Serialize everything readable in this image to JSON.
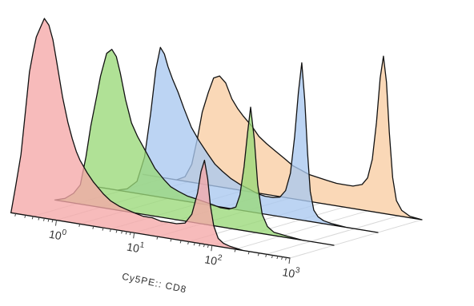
{
  "chart_data": {
    "type": "area",
    "subtype": "offset-histogram-overlay",
    "title": "",
    "xlabel": "Cy5PE:: CD8",
    "ylabel": "",
    "x_scale": "log",
    "xlim": [
      0.25,
      1000
    ],
    "ticks": [
      {
        "base": "10",
        "exp": "0",
        "value": 1
      },
      {
        "base": "10",
        "exp": "1",
        "value": 10
      },
      {
        "base": "10",
        "exp": "2",
        "value": 100
      },
      {
        "base": "10",
        "exp": "3",
        "value": 1000
      }
    ],
    "grid": true,
    "legend": "none",
    "series": [
      {
        "color": "#f5a8a8",
        "peak_height": 1.0,
        "x": [
          0.26,
          0.3,
          0.35,
          0.4,
          0.45,
          0.5,
          0.55,
          0.62,
          0.7,
          0.8,
          0.9,
          1.0,
          1.2,
          1.4,
          1.6,
          1.8,
          2.0,
          2.5,
          3.0,
          4.0,
          5.0,
          6.5,
          8.0,
          10,
          13,
          17,
          22,
          28,
          35,
          45,
          55,
          65,
          72,
          80,
          88,
          95,
          105,
          120,
          140,
          170,
          250,
          400,
          700,
          1000
        ],
        "y": [
          0.0,
          0.14,
          0.3,
          0.52,
          0.72,
          0.82,
          0.9,
          0.95,
          1.0,
          0.97,
          0.9,
          0.8,
          0.62,
          0.5,
          0.42,
          0.36,
          0.32,
          0.26,
          0.22,
          0.17,
          0.14,
          0.12,
          0.11,
          0.1,
          0.09,
          0.09,
          0.08,
          0.08,
          0.08,
          0.09,
          0.14,
          0.25,
          0.36,
          0.42,
          0.33,
          0.2,
          0.1,
          0.04,
          0.02,
          0.01,
          0.0,
          0.0,
          0.0,
          0.0
        ]
      },
      {
        "color": "#9ad879",
        "peak_height": 0.8,
        "x": [
          0.26,
          0.35,
          0.45,
          0.55,
          0.65,
          0.75,
          0.9,
          1.0,
          1.2,
          1.4,
          1.6,
          1.8,
          2.1,
          2.5,
          3.0,
          4.0,
          5.0,
          6.5,
          8.0,
          10,
          13,
          17,
          22,
          28,
          35,
          45,
          55,
          62,
          70,
          78,
          85,
          95,
          105,
          120,
          140,
          170,
          250,
          400,
          700,
          1000
        ],
        "y": [
          0.0,
          0.02,
          0.06,
          0.12,
          0.3,
          0.5,
          0.7,
          0.82,
          0.97,
          1.0,
          0.96,
          0.86,
          0.7,
          0.56,
          0.48,
          0.38,
          0.3,
          0.24,
          0.2,
          0.18,
          0.16,
          0.15,
          0.14,
          0.13,
          0.12,
          0.12,
          0.14,
          0.22,
          0.4,
          0.62,
          0.78,
          0.58,
          0.3,
          0.12,
          0.05,
          0.02,
          0.01,
          0.0,
          0.0,
          0.0
        ]
      },
      {
        "color": "#a9c8f0",
        "peak_height": 0.75,
        "x": [
          0.26,
          0.45,
          0.6,
          0.8,
          1.0,
          1.2,
          1.4,
          1.6,
          1.8,
          2.0,
          2.3,
          2.7,
          3.2,
          4.0,
          5.0,
          6.5,
          8.0,
          10,
          13,
          17,
          22,
          28,
          35,
          45,
          55,
          65,
          75,
          85,
          95,
          105,
          115,
          125,
          135,
          150,
          170,
          200,
          250,
          400,
          700,
          1000
        ],
        "y": [
          0.0,
          0.0,
          0.02,
          0.08,
          0.25,
          0.55,
          0.85,
          1.0,
          0.96,
          0.88,
          0.8,
          0.72,
          0.62,
          0.5,
          0.42,
          0.34,
          0.28,
          0.24,
          0.2,
          0.17,
          0.15,
          0.13,
          0.12,
          0.12,
          0.13,
          0.18,
          0.3,
          0.55,
          0.85,
          1.05,
          0.8,
          0.45,
          0.2,
          0.08,
          0.04,
          0.02,
          0.01,
          0.0,
          0.0,
          0.0
        ]
      },
      {
        "color": "#f8cda3",
        "peak_height": 0.75,
        "x": [
          0.26,
          0.5,
          0.7,
          0.9,
          1.1,
          1.3,
          1.5,
          1.8,
          2.1,
          2.5,
          3.0,
          3.6,
          4.3,
          5.0,
          6.5,
          8.0,
          10,
          13,
          17,
          22,
          28,
          35,
          45,
          60,
          80,
          100,
          130,
          170,
          200,
          230,
          260,
          290,
          320,
          350,
          380,
          420,
          470,
          550,
          700,
          1000
        ],
        "y": [
          0.0,
          0.0,
          0.0,
          0.03,
          0.12,
          0.3,
          0.48,
          0.62,
          0.72,
          0.74,
          0.7,
          0.6,
          0.54,
          0.5,
          0.44,
          0.38,
          0.34,
          0.3,
          0.26,
          0.22,
          0.2,
          0.18,
          0.17,
          0.16,
          0.15,
          0.15,
          0.15,
          0.17,
          0.22,
          0.35,
          0.6,
          0.9,
          1.05,
          0.88,
          0.55,
          0.25,
          0.1,
          0.04,
          0.01,
          0.0
        ]
      }
    ]
  }
}
